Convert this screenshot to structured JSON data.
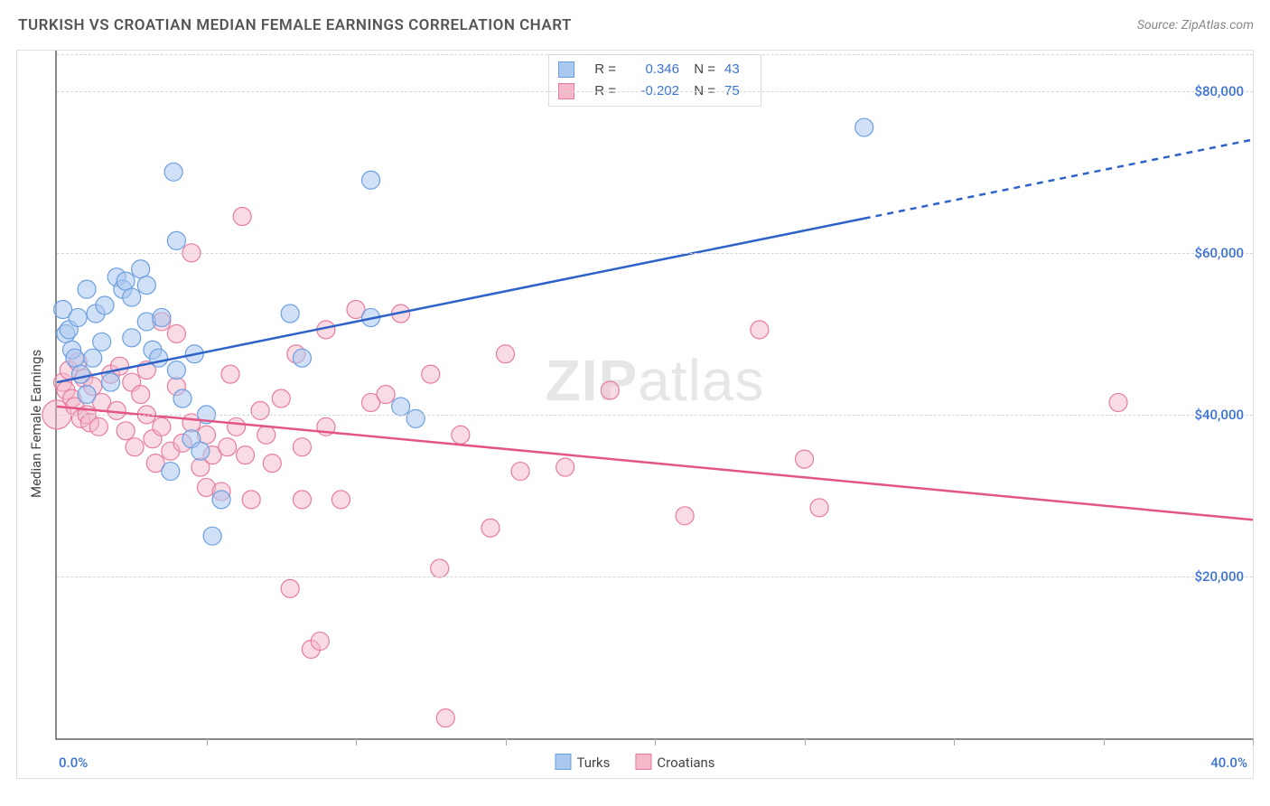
{
  "title": "TURKISH VS CROATIAN MEDIAN FEMALE EARNINGS CORRELATION CHART",
  "source_label": "Source: ZipAtlas.com",
  "ylabel": "Median Female Earnings",
  "watermark_bold": "ZIP",
  "watermark_light": "atlas",
  "chart": {
    "type": "scatter",
    "xlim": [
      0,
      40
    ],
    "ylim": [
      0,
      85000
    ],
    "x_start_label": "0.0%",
    "x_end_label": "40.0%",
    "y_ticks": [
      20000,
      40000,
      60000,
      80000
    ],
    "y_tick_labels": [
      "$20,000",
      "$40,000",
      "$60,000",
      "$80,000"
    ],
    "x_ticks": [
      5,
      10,
      15,
      20,
      25,
      30,
      35,
      40
    ],
    "grid_color": "#d5d5d5",
    "background_color": "#ffffff",
    "axis_color": "#888888",
    "tick_label_color": "#3b72d4"
  },
  "series": {
    "turks": {
      "label": "Turks",
      "color_fill": "#a9c7ef",
      "color_stroke": "#6c9fe0",
      "fill_opacity": 0.55,
      "marker_radius": 10,
      "r_label": "R =",
      "r_value": "0.346",
      "n_label": "N =",
      "n_value": "43",
      "trend": {
        "y_at_x0": 44000,
        "y_at_x40": 74000,
        "solid_until_x": 27,
        "stroke": "#2e62c9",
        "stroke_width": 2.5
      },
      "points": [
        {
          "x": 0.2,
          "y": 53000
        },
        {
          "x": 0.3,
          "y": 50000
        },
        {
          "x": 0.4,
          "y": 50500
        },
        {
          "x": 0.5,
          "y": 48000
        },
        {
          "x": 0.6,
          "y": 47000
        },
        {
          "x": 0.7,
          "y": 52000
        },
        {
          "x": 0.8,
          "y": 45000
        },
        {
          "x": 1.0,
          "y": 42500
        },
        {
          "x": 1.0,
          "y": 55500
        },
        {
          "x": 1.2,
          "y": 47000
        },
        {
          "x": 1.3,
          "y": 52500
        },
        {
          "x": 1.5,
          "y": 49000
        },
        {
          "x": 1.6,
          "y": 53500
        },
        {
          "x": 1.8,
          "y": 44000
        },
        {
          "x": 2.0,
          "y": 57000
        },
        {
          "x": 2.2,
          "y": 55500
        },
        {
          "x": 2.3,
          "y": 56500
        },
        {
          "x": 2.5,
          "y": 49500
        },
        {
          "x": 2.5,
          "y": 54500
        },
        {
          "x": 2.8,
          "y": 58000
        },
        {
          "x": 3.0,
          "y": 51500
        },
        {
          "x": 3.0,
          "y": 56000
        },
        {
          "x": 3.2,
          "y": 48000
        },
        {
          "x": 3.4,
          "y": 47000
        },
        {
          "x": 3.5,
          "y": 52000
        },
        {
          "x": 3.8,
          "y": 33000
        },
        {
          "x": 3.9,
          "y": 70000
        },
        {
          "x": 4.0,
          "y": 45500
        },
        {
          "x": 4.0,
          "y": 61500
        },
        {
          "x": 4.2,
          "y": 42000
        },
        {
          "x": 4.5,
          "y": 37000
        },
        {
          "x": 4.6,
          "y": 47500
        },
        {
          "x": 4.8,
          "y": 35500
        },
        {
          "x": 5.0,
          "y": 40000
        },
        {
          "x": 5.2,
          "y": 25000
        },
        {
          "x": 5.5,
          "y": 29500
        },
        {
          "x": 7.8,
          "y": 52500
        },
        {
          "x": 8.2,
          "y": 47000
        },
        {
          "x": 10.5,
          "y": 69000
        },
        {
          "x": 10.5,
          "y": 52000
        },
        {
          "x": 11.5,
          "y": 41000
        },
        {
          "x": 12.0,
          "y": 39500
        },
        {
          "x": 27.0,
          "y": 75500
        }
      ]
    },
    "croatians": {
      "label": "Croatians",
      "color_fill": "#f4b8c9",
      "color_stroke": "#e77ba0",
      "fill_opacity": 0.5,
      "marker_radius": 10,
      "r_label": "R =",
      "r_value": "-0.202",
      "n_label": "N =",
      "n_value": "75",
      "trend": {
        "y_at_x0": 41000,
        "y_at_x40": 27000,
        "solid_until_x": 40,
        "stroke": "#e35583",
        "stroke_width": 2.5
      },
      "points": [
        {
          "x": 0.0,
          "y": 40000,
          "r": 16
        },
        {
          "x": 0.2,
          "y": 44000
        },
        {
          "x": 0.3,
          "y": 43000
        },
        {
          "x": 0.4,
          "y": 45500
        },
        {
          "x": 0.5,
          "y": 42000
        },
        {
          "x": 0.6,
          "y": 41000
        },
        {
          "x": 0.7,
          "y": 46500
        },
        {
          "x": 0.8,
          "y": 39500
        },
        {
          "x": 0.9,
          "y": 44500
        },
        {
          "x": 1.0,
          "y": 40000
        },
        {
          "x": 1.1,
          "y": 39000
        },
        {
          "x": 1.2,
          "y": 43500
        },
        {
          "x": 1.4,
          "y": 38500
        },
        {
          "x": 1.5,
          "y": 41500
        },
        {
          "x": 1.8,
          "y": 45000
        },
        {
          "x": 2.0,
          "y": 40500
        },
        {
          "x": 2.1,
          "y": 46000
        },
        {
          "x": 2.3,
          "y": 38000
        },
        {
          "x": 2.5,
          "y": 44000
        },
        {
          "x": 2.6,
          "y": 36000
        },
        {
          "x": 2.8,
          "y": 42500
        },
        {
          "x": 3.0,
          "y": 40000
        },
        {
          "x": 3.0,
          "y": 45500
        },
        {
          "x": 3.2,
          "y": 37000
        },
        {
          "x": 3.3,
          "y": 34000
        },
        {
          "x": 3.5,
          "y": 38500
        },
        {
          "x": 3.5,
          "y": 51500
        },
        {
          "x": 3.8,
          "y": 35500
        },
        {
          "x": 4.0,
          "y": 43500
        },
        {
          "x": 4.0,
          "y": 50000
        },
        {
          "x": 4.2,
          "y": 36500
        },
        {
          "x": 4.5,
          "y": 39000
        },
        {
          "x": 4.5,
          "y": 60000
        },
        {
          "x": 4.8,
          "y": 33500
        },
        {
          "x": 5.0,
          "y": 31000
        },
        {
          "x": 5.0,
          "y": 37500
        },
        {
          "x": 5.2,
          "y": 35000
        },
        {
          "x": 5.5,
          "y": 30500
        },
        {
          "x": 5.7,
          "y": 36000
        },
        {
          "x": 5.8,
          "y": 45000
        },
        {
          "x": 6.0,
          "y": 38500
        },
        {
          "x": 6.2,
          "y": 64500
        },
        {
          "x": 6.3,
          "y": 35000
        },
        {
          "x": 6.5,
          "y": 29500
        },
        {
          "x": 6.8,
          "y": 40500
        },
        {
          "x": 7.0,
          "y": 37500
        },
        {
          "x": 7.2,
          "y": 34000
        },
        {
          "x": 7.5,
          "y": 42000
        },
        {
          "x": 7.8,
          "y": 18500
        },
        {
          "x": 8.0,
          "y": 47500
        },
        {
          "x": 8.2,
          "y": 36000
        },
        {
          "x": 8.2,
          "y": 29500
        },
        {
          "x": 8.5,
          "y": 11000
        },
        {
          "x": 8.8,
          "y": 12000
        },
        {
          "x": 9.0,
          "y": 38500
        },
        {
          "x": 9.0,
          "y": 50500
        },
        {
          "x": 9.5,
          "y": 29500
        },
        {
          "x": 10.0,
          "y": 53000
        },
        {
          "x": 10.5,
          "y": 41500
        },
        {
          "x": 11.0,
          "y": 42500
        },
        {
          "x": 11.5,
          "y": 52500
        },
        {
          "x": 12.5,
          "y": 45000
        },
        {
          "x": 12.8,
          "y": 21000
        },
        {
          "x": 13.0,
          "y": 2500
        },
        {
          "x": 13.5,
          "y": 37500
        },
        {
          "x": 14.5,
          "y": 26000
        },
        {
          "x": 15.0,
          "y": 47500
        },
        {
          "x": 15.5,
          "y": 33000
        },
        {
          "x": 17.0,
          "y": 33500
        },
        {
          "x": 18.5,
          "y": 43000
        },
        {
          "x": 21.0,
          "y": 27500
        },
        {
          "x": 23.5,
          "y": 50500
        },
        {
          "x": 25.0,
          "y": 34500
        },
        {
          "x": 25.5,
          "y": 28500
        },
        {
          "x": 35.5,
          "y": 41500
        }
      ]
    }
  }
}
